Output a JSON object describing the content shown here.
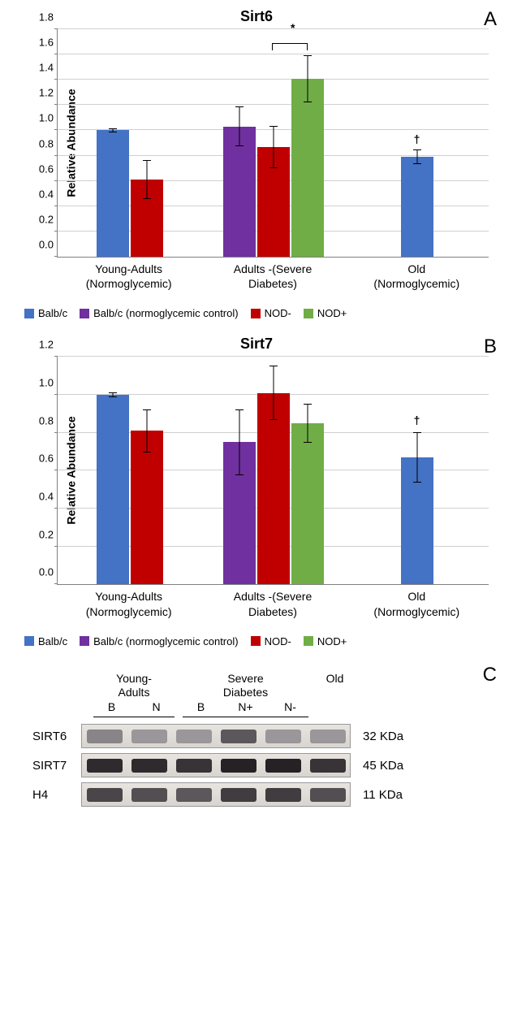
{
  "colors": {
    "balbc": "#4472c4",
    "balbc_ctrl": "#7030a0",
    "nod_minus": "#c00000",
    "nod_plus": "#70ad47",
    "grid": "#d0d0d0"
  },
  "legend": [
    {
      "label": "Balb/c",
      "color": "#4472c4"
    },
    {
      "label": "Balb/c (normoglycemic control)",
      "color": "#7030a0"
    },
    {
      "label": "NOD-",
      "color": "#c00000"
    },
    {
      "label": "NOD+",
      "color": "#70ad47"
    }
  ],
  "panelA": {
    "label": "A",
    "title": "Sirt6",
    "ylabel": "Relative Abundance",
    "ylim": [
      0,
      1.8
    ],
    "ytick_step": 0.2,
    "groups": [
      {
        "label_line1": "Young-Adults",
        "label_line2": "(Normoglycemic)",
        "bars": [
          {
            "color": "#4472c4",
            "value": 1.0,
            "err": 0.01
          },
          {
            "color": "#c00000",
            "value": 0.61,
            "err": 0.15
          }
        ]
      },
      {
        "label_line1": "Adults -(Severe",
        "label_line2": "Diabetes)",
        "bars": [
          {
            "color": "#7030a0",
            "value": 1.03,
            "err": 0.15
          },
          {
            "color": "#c00000",
            "value": 0.87,
            "err": 0.16
          },
          {
            "color": "#70ad47",
            "value": 1.41,
            "err": 0.18,
            "sig_bracket_to_prev": true,
            "sig_label": "*"
          }
        ]
      },
      {
        "label_line1": "Old",
        "label_line2": "(Normoglycemic)",
        "bars": [
          {
            "color": "#4472c4",
            "value": 0.79,
            "err": 0.05,
            "annot": "†"
          }
        ]
      }
    ]
  },
  "panelB": {
    "label": "B",
    "title": "Sirt7",
    "ylabel": "Relative Abundance",
    "ylim": [
      0,
      1.2
    ],
    "ytick_step": 0.2,
    "groups": [
      {
        "label_line1": "Young-Adults",
        "label_line2": "(Normoglycemic)",
        "bars": [
          {
            "color": "#4472c4",
            "value": 1.0,
            "err": 0.01
          },
          {
            "color": "#c00000",
            "value": 0.81,
            "err": 0.11
          }
        ]
      },
      {
        "label_line1": "Adults -(Severe",
        "label_line2": "Diabetes)",
        "bars": [
          {
            "color": "#7030a0",
            "value": 0.75,
            "err": 0.17
          },
          {
            "color": "#c00000",
            "value": 1.01,
            "err": 0.14
          },
          {
            "color": "#70ad47",
            "value": 0.85,
            "err": 0.1
          }
        ]
      },
      {
        "label_line1": "Old",
        "label_line2": "(Normoglycemic)",
        "bars": [
          {
            "color": "#4472c4",
            "value": 0.67,
            "err": 0.13,
            "annot": "†"
          }
        ]
      }
    ]
  },
  "panelC": {
    "label": "C",
    "group_headers": [
      {
        "line1": "Young-",
        "line2": "Adults",
        "lanes": 2,
        "underline": true
      },
      {
        "line1": "Severe",
        "line2": "Diabetes",
        "lanes": 3,
        "underline": true
      },
      {
        "line1": "",
        "line2": "Old",
        "lanes": 1,
        "underline": false
      }
    ],
    "lane_labels": [
      "B",
      "N",
      "B",
      "N+",
      "N-",
      ""
    ],
    "lane_width": 55,
    "rows": [
      {
        "label": "SIRT6",
        "kda": "32 KDa",
        "bands": [
          {
            "intensity": 0.35
          },
          {
            "intensity": 0.25
          },
          {
            "intensity": 0.25
          },
          {
            "intensity": 0.6
          },
          {
            "intensity": 0.25
          },
          {
            "intensity": 0.25
          }
        ]
      },
      {
        "label": "SIRT7",
        "kda": "45 KDa",
        "bands": [
          {
            "intensity": 0.85
          },
          {
            "intensity": 0.85
          },
          {
            "intensity": 0.8
          },
          {
            "intensity": 0.9
          },
          {
            "intensity": 0.9
          },
          {
            "intensity": 0.8
          }
        ]
      },
      {
        "label": "H4",
        "kda": "11 KDa",
        "bands": [
          {
            "intensity": 0.7
          },
          {
            "intensity": 0.65
          },
          {
            "intensity": 0.6
          },
          {
            "intensity": 0.75
          },
          {
            "intensity": 0.75
          },
          {
            "intensity": 0.65
          }
        ]
      }
    ]
  }
}
